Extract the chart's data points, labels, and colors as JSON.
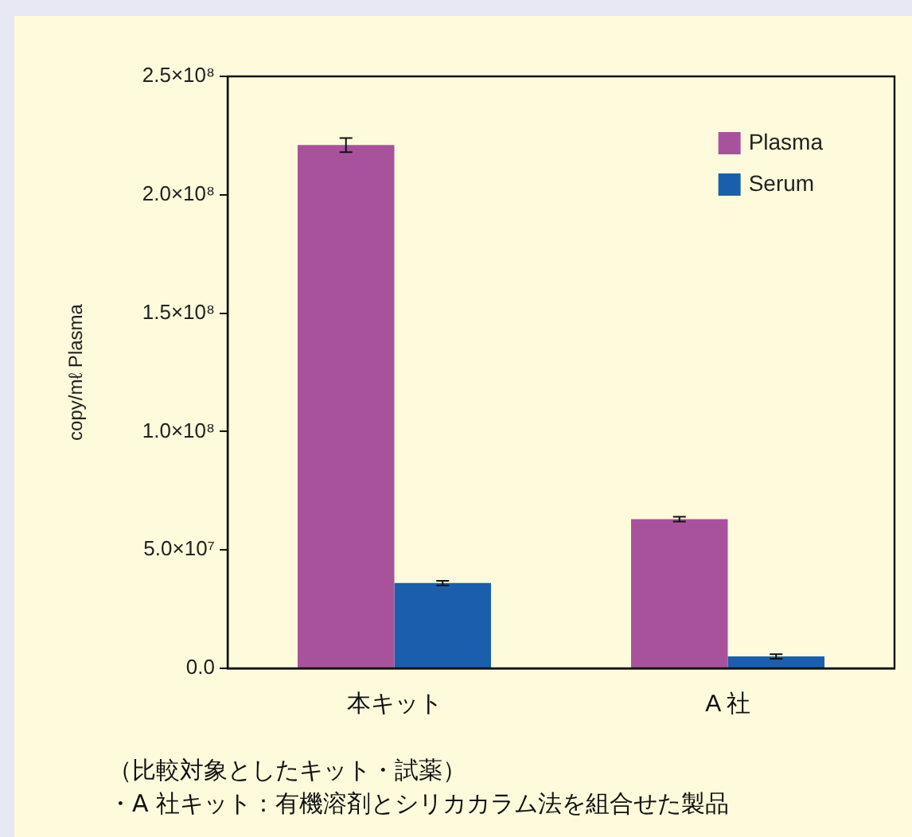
{
  "chart_data": {
    "type": "bar",
    "ylabel": "copy/mℓ Plasma",
    "categories": [
      "本キット",
      "A 社"
    ],
    "series": [
      {
        "name": "Plasma",
        "color": "#a8529c",
        "values": [
          221000000,
          63000000
        ],
        "errors": [
          3000000,
          1000000
        ]
      },
      {
        "name": "Serum",
        "color": "#1a5fae",
        "values": [
          36000000,
          5000000
        ],
        "errors": [
          1000000,
          1000000
        ]
      }
    ],
    "ylim": [
      0,
      250000000
    ],
    "yticks": [
      {
        "value": 0,
        "label": "0.0"
      },
      {
        "value": 50000000,
        "label": "5.0×10⁷"
      },
      {
        "value": 100000000,
        "label": "1.0×10⁸"
      },
      {
        "value": 150000000,
        "label": "1.5×10⁸"
      },
      {
        "value": 200000000,
        "label": "2.0×10⁸"
      },
      {
        "value": 250000000,
        "label": "2.5×10⁸"
      }
    ],
    "grid": false,
    "legend": "top right",
    "annotations": [
      "（比較対象としたキット・試薬）",
      "・A 社キット：有機溶剤とシリカカラム法を組合せた製品"
    ]
  }
}
